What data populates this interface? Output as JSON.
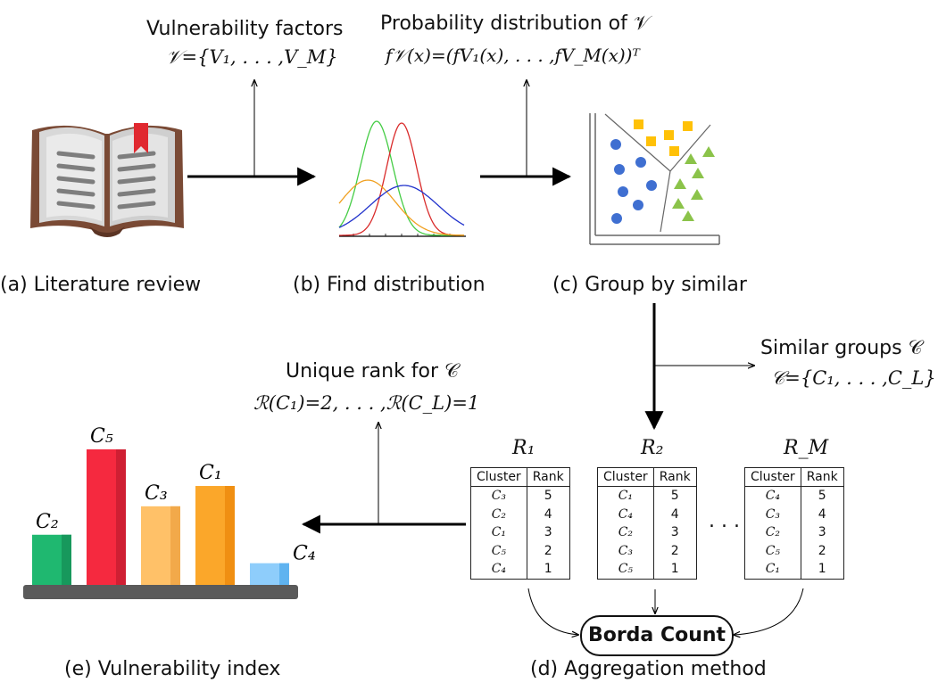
{
  "stages": {
    "a": "(a) Literature review",
    "b": "(b) Find distribution",
    "c": "(c) Group by similar",
    "d": "(d) Aggregation method",
    "e": "(e) Vulnerability index"
  },
  "annotations": {
    "vulnerability_title": "Vulnerability factors",
    "vulnerability_set": "𝒱={V₁, . . . ,V_M}",
    "distribution_title": "Probability distribution of 𝒱",
    "distribution_formula": "f𝒱(x)=(fV₁(x), . . . ,fV_M(x))ᵀ",
    "groups_title": "Similar groups 𝒞",
    "groups_set": "𝒞={C₁, . . . ,C_L}",
    "rank_title": "Unique rank for 𝒞",
    "rank_formula": "ℛ(C₁)=2, . . . ,ℛ(C_L)=1"
  },
  "rank_tables": [
    {
      "title": "R₁",
      "header": [
        "Cluster",
        "Rank"
      ],
      "rows": [
        [
          "C₃",
          "5"
        ],
        [
          "C₂",
          "4"
        ],
        [
          "C₁",
          "3"
        ],
        [
          "C₅",
          "2"
        ],
        [
          "C₄",
          "1"
        ]
      ]
    },
    {
      "title": "R₂",
      "header": [
        "Cluster",
        "Rank"
      ],
      "rows": [
        [
          "C₁",
          "5"
        ],
        [
          "C₄",
          "4"
        ],
        [
          "C₂",
          "3"
        ],
        [
          "C₃",
          "2"
        ],
        [
          "C₅",
          "1"
        ]
      ]
    },
    {
      "title": "R_M",
      "header": [
        "Cluster",
        "Rank"
      ],
      "rows": [
        [
          "C₄",
          "5"
        ],
        [
          "C₃",
          "4"
        ],
        [
          "C₂",
          "3"
        ],
        [
          "C₅",
          "2"
        ],
        [
          "C₁",
          "1"
        ]
      ]
    }
  ],
  "ellipsis": ". . .",
  "borda": "Borda Count",
  "index_bars": [
    {
      "label": "C₂",
      "value": 0.37,
      "color": "#1fb870",
      "shade": "#17985c"
    },
    {
      "label": "C₅",
      "value": 1.0,
      "color": "#f5293f",
      "shade": "#cf1f33"
    },
    {
      "label": "C₃",
      "value": 0.58,
      "color": "#ffc168",
      "shade": "#f2a94a"
    },
    {
      "label": "C₁",
      "value": 0.73,
      "color": "#fba72a",
      "shade": "#f08f12"
    },
    {
      "label": "C₄",
      "value": 0.16,
      "color": "#8ecdfb",
      "shade": "#5fb3f0"
    }
  ],
  "colors": {
    "red": "#d92b2b",
    "green": "#44cc44",
    "orange": "#f0a020",
    "blue": "#2233cc",
    "square": "#ffc107",
    "circle": "#3f6fd1",
    "triangle": "#8bc34a"
  }
}
